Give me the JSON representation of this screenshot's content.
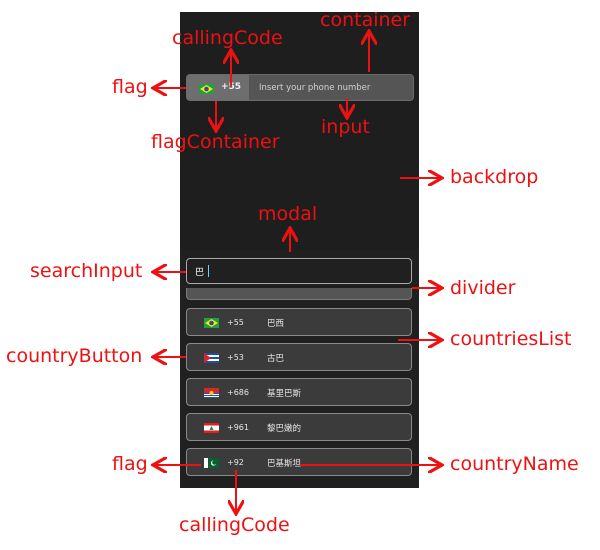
{
  "phone_field": {
    "calling_code": "+55",
    "placeholder": "Insert your phone number"
  },
  "modal": {
    "search_value": "巴",
    "countries": [
      {
        "flag": "brazil-flag-icon",
        "code": "+55",
        "name": "巴西"
      },
      {
        "flag": "cuba-flag-icon",
        "code": "+53",
        "name": "古巴"
      },
      {
        "flag": "kiribati-flag-icon",
        "code": "+686",
        "name": "基里巴斯"
      },
      {
        "flag": "lebanon-flag-icon",
        "code": "+961",
        "name": "黎巴嫩的"
      },
      {
        "flag": "pakistan-flag-icon",
        "code": "+92",
        "name": "巴基斯坦"
      }
    ]
  },
  "annotations": {
    "container": "container",
    "calling_code_top": "callingCode",
    "flag_top": "flag",
    "flag_container": "flagContainer",
    "input": "input",
    "backdrop": "backdrop",
    "modal": "modal",
    "search_input": "searchInput",
    "divider": "divider",
    "countries_list": "countriesList",
    "country_button": "countryButton",
    "flag_bottom": "flag",
    "country_name": "countryName",
    "calling_code_bottom": "callingCode"
  },
  "colors": {
    "annotation": "#ee1111",
    "screen_bg": "#1d1d1d"
  }
}
